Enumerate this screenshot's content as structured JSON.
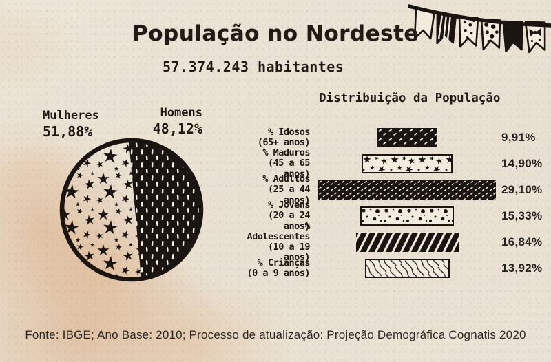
{
  "header": {
    "title": "População no Nordeste",
    "subtitle": "57.374.243 habitantes"
  },
  "footer": {
    "text": "Fonte: IBGE; Ano Base: 2010; Processo de atualização: Projeção Demográfica Cognatis 2020"
  },
  "colors": {
    "ink": "#1b1511",
    "paper": "#eae2d4",
    "stain": "#d9a578",
    "bar_white": "#f2ecdf"
  },
  "chart_data": [
    {
      "type": "pie",
      "title": "População no Nordeste",
      "total_label": "57.374.243 habitantes",
      "slices": [
        {
          "label": "Mulheres",
          "value": 51.88,
          "display": "51,88%",
          "pattern": "black-stars-on-paper"
        },
        {
          "label": "Homens",
          "value": 48.12,
          "display": "48,12%",
          "pattern": "white-dashes-on-black"
        }
      ]
    },
    {
      "type": "bar",
      "title": "Distribuição da População",
      "orientation": "horizontal",
      "align": "center",
      "xlim": [
        0,
        29.1
      ],
      "bars": [
        {
          "label": "% Idosos",
          "sublabel": "(65+ anos)",
          "value": 9.91,
          "display": "9,91%",
          "pattern": "rain"
        },
        {
          "label": "% Maduros",
          "sublabel": "(45 a 65 anos)",
          "value": 14.9,
          "display": "14,90%",
          "pattern": "stars"
        },
        {
          "label": "% Adultos",
          "sublabel": "(25 a 44 anos)",
          "value": 29.1,
          "display": "29,10%",
          "pattern": "dense"
        },
        {
          "label": "% Jovens",
          "sublabel": "(20 a 24 anos)",
          "value": 15.33,
          "display": "15,33%",
          "pattern": "dots"
        },
        {
          "label": "% Adolescentes",
          "sublabel": "(10 a 19 anos)",
          "value": 16.84,
          "display": "16,84%",
          "pattern": "hatch"
        },
        {
          "label": "% Crianças",
          "sublabel": "(0 a 9 anos)",
          "value": 13.92,
          "display": "13,92%",
          "pattern": "waves"
        }
      ]
    }
  ]
}
